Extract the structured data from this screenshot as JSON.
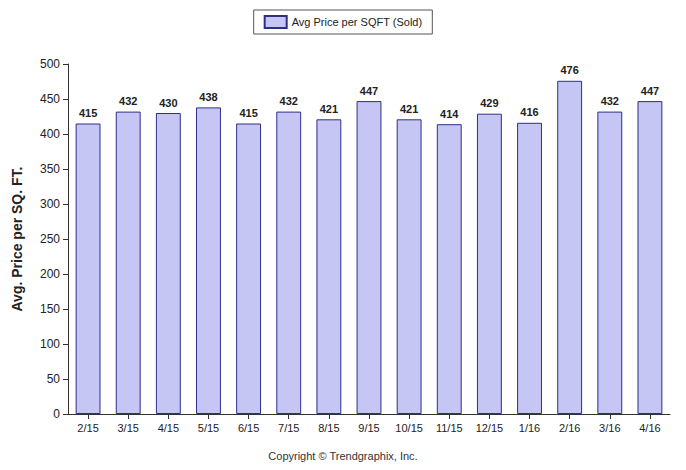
{
  "chart_data": {
    "type": "bar",
    "y_label": "Avg. Price per SQ. FT.",
    "source": "Copyright © Trendgraphix, Inc.",
    "categories": [
      "2/15",
      "3/15",
      "4/15",
      "5/15",
      "6/15",
      "7/15",
      "8/15",
      "9/15",
      "10/15",
      "11/15",
      "12/15",
      "1/16",
      "2/16",
      "3/16",
      "4/16"
    ],
    "series": [
      {
        "name": "Avg Price per SQFT (Sold)",
        "color": "#c6c6f5",
        "values": [
          415,
          432,
          430,
          438,
          415,
          432,
          421,
          447,
          421,
          414,
          429,
          416,
          476,
          432,
          447
        ]
      }
    ],
    "ylim": [
      0,
      500
    ],
    "yticks": [
      0,
      50,
      100,
      150,
      200,
      250,
      300,
      350,
      400,
      450,
      500
    ],
    "grid": false,
    "legend": "top",
    "data_labels": true
  }
}
